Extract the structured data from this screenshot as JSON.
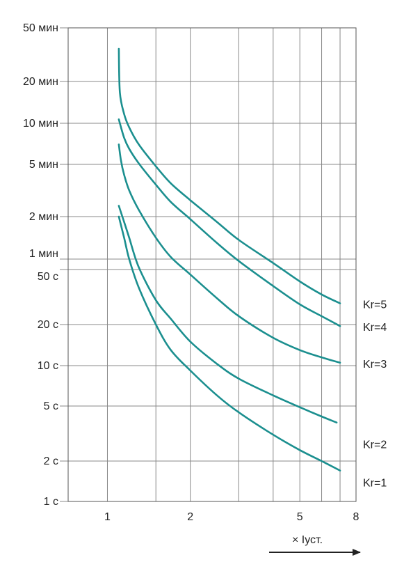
{
  "chart_data": {
    "type": "line",
    "xscale": "log",
    "yscale": "log",
    "grid": true,
    "xlabel": "× Iуст.",
    "ylabel": "",
    "title": "",
    "x_ticks": [
      {
        "value": 1,
        "label": "1"
      },
      {
        "value": 2,
        "label": "2"
      },
      {
        "value": 5,
        "label": "5"
      },
      {
        "value": 8,
        "label": "8"
      }
    ],
    "x_gridlines": [
      1,
      1.5,
      2,
      3,
      4,
      5,
      6,
      7,
      8
    ],
    "y_ticks": [
      {
        "value": 1,
        "label": "1 с"
      },
      {
        "value": 2,
        "label": "2 с"
      },
      {
        "value": 5,
        "label": "5 с"
      },
      {
        "value": 10,
        "label": "10 с"
      },
      {
        "value": 20,
        "label": "20 с"
      },
      {
        "value": 50,
        "label": "50 с"
      },
      {
        "value": 60,
        "label": "1 мин"
      },
      {
        "value": 120,
        "label": "2 мин"
      },
      {
        "value": 300,
        "label": "5 мин"
      },
      {
        "value": 600,
        "label": "10 мин"
      },
      {
        "value": 1200,
        "label": "20 мин"
      },
      {
        "value": 3000,
        "label": "50 мин"
      }
    ],
    "series": [
      {
        "name": "Kr=5",
        "points": [
          [
            1.1,
            2100
          ],
          [
            1.11,
            1000
          ],
          [
            1.15,
            700
          ],
          [
            1.2,
            560
          ],
          [
            1.3,
            420
          ],
          [
            1.5,
            290
          ],
          [
            1.7,
            215
          ],
          [
            2.0,
            160
          ],
          [
            2.5,
            110
          ],
          [
            3.0,
            82
          ],
          [
            4.0,
            56
          ],
          [
            5.0,
            41
          ],
          [
            6.0,
            33
          ],
          [
            7.0,
            28.5
          ]
        ]
      },
      {
        "name": "Kr=4",
        "points": [
          [
            1.1,
            640
          ],
          [
            1.15,
            470
          ],
          [
            1.2,
            390
          ],
          [
            1.3,
            305
          ],
          [
            1.5,
            210
          ],
          [
            1.7,
            155
          ],
          [
            2.0,
            115
          ],
          [
            2.5,
            78
          ],
          [
            3.0,
            58
          ],
          [
            4.0,
            38
          ],
          [
            5.0,
            28
          ],
          [
            6.0,
            23
          ],
          [
            7.0,
            19.5
          ]
        ]
      },
      {
        "name": "Kr=3",
        "points": [
          [
            1.1,
            420
          ],
          [
            1.12,
            320
          ],
          [
            1.15,
            250
          ],
          [
            1.2,
            190
          ],
          [
            1.3,
            135
          ],
          [
            1.5,
            85
          ],
          [
            1.7,
            62
          ],
          [
            2.0,
            46
          ],
          [
            2.5,
            31
          ],
          [
            3.0,
            23
          ],
          [
            4.0,
            16
          ],
          [
            5.0,
            13
          ],
          [
            6.0,
            11.5
          ],
          [
            7.0,
            10.5
          ]
        ]
      },
      {
        "name": "Kr=2",
        "points": [
          [
            1.1,
            145
          ],
          [
            1.15,
            110
          ],
          [
            1.2,
            85
          ],
          [
            1.3,
            52
          ],
          [
            1.5,
            30
          ],
          [
            1.7,
            22
          ],
          [
            2.0,
            15
          ],
          [
            2.5,
            10.3
          ],
          [
            3.0,
            8.0
          ],
          [
            4.0,
            6.0
          ],
          [
            5.0,
            4.9
          ],
          [
            6.0,
            4.2
          ],
          [
            6.8,
            3.8
          ]
        ]
      },
      {
        "name": "Kr=1",
        "points": [
          [
            1.1,
            120
          ],
          [
            1.15,
            85
          ],
          [
            1.2,
            60
          ],
          [
            1.3,
            37
          ],
          [
            1.5,
            20
          ],
          [
            1.7,
            13
          ],
          [
            2.0,
            9.2
          ],
          [
            2.5,
            6.0
          ],
          [
            3.0,
            4.5
          ],
          [
            4.0,
            3.1
          ],
          [
            5.0,
            2.4
          ],
          [
            6.0,
            2.0
          ],
          [
            7.0,
            1.7
          ]
        ]
      }
    ],
    "legend_placement": "right",
    "colors": {
      "series": "#1b8f8f",
      "grid": "#888888",
      "axis": "#555555",
      "text": "#222222"
    }
  }
}
